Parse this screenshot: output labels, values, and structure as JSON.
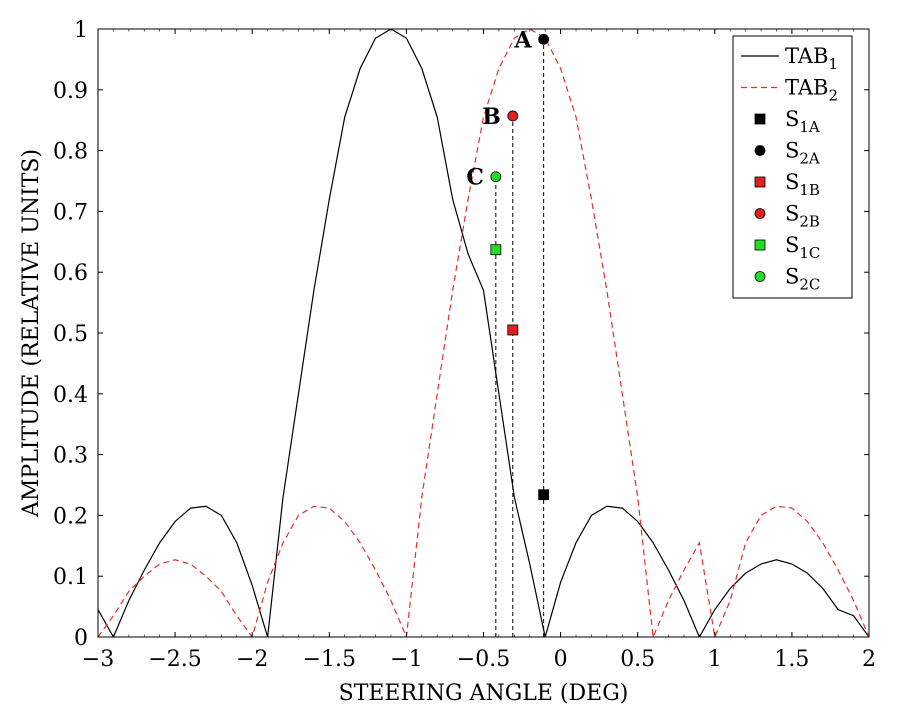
{
  "chart_data": {
    "type": "line",
    "xlabel": "STEERING ANGLE (DEG)",
    "ylabel": "AMPLITUDE (RELATIVE UNITS)",
    "xlim": [
      -3,
      2
    ],
    "ylim": [
      0,
      1
    ],
    "grid": false,
    "legend_position": "top-right",
    "x_ticks": [
      -3,
      -2.5,
      -2,
      -1.5,
      -1,
      -0.5,
      0,
      0.5,
      1,
      1.5,
      2
    ],
    "x_tick_labels": [
      "−3",
      "−2.5",
      "−2",
      "−1.5",
      "−1",
      "−0.5",
      "0",
      "0.5",
      "1",
      "1.5",
      "2"
    ],
    "y_ticks": [
      0,
      0.1,
      0.2,
      0.3,
      0.4,
      0.5,
      0.6,
      0.7,
      0.8,
      0.9,
      1
    ],
    "y_tick_labels": [
      "0",
      "0.1",
      "0.2",
      "0.3",
      "0.4",
      "0.5",
      "0.6",
      "0.7",
      "0.8",
      "0.9",
      "1"
    ],
    "series": [
      {
        "name": "TAB",
        "subscript": "1",
        "style": "solid",
        "color": "#000000",
        "x": [
          -3.0,
          -2.9,
          -2.8,
          -2.7,
          -2.6,
          -2.5,
          -2.4,
          -2.3,
          -2.2,
          -2.1,
          -2.0,
          -1.9,
          -1.8,
          -1.7,
          -1.6,
          -1.5,
          -1.4,
          -1.3,
          -1.2,
          -1.1,
          -1.0,
          -0.9,
          -0.8,
          -0.7,
          -0.6,
          -0.5,
          -0.4,
          -0.3,
          -0.2,
          -0.1,
          0.0,
          0.1,
          0.2,
          0.3,
          0.4,
          0.5,
          0.6,
          0.7,
          0.8,
          0.9,
          1.0,
          1.1,
          1.2,
          1.3,
          1.4,
          1.5,
          1.6,
          1.7,
          1.8,
          1.9,
          2.0
        ],
        "y": [
          0.045,
          0.0,
          0.06,
          0.11,
          0.155,
          0.19,
          0.212,
          0.215,
          0.2,
          0.155,
          0.085,
          0.0,
          0.23,
          0.4,
          0.57,
          0.72,
          0.855,
          0.935,
          0.985,
          1.0,
          0.985,
          0.935,
          0.855,
          0.72,
          0.63,
          0.57,
          0.4,
          0.23,
          0.12,
          0.0,
          0.09,
          0.155,
          0.2,
          0.215,
          0.212,
          0.19,
          0.155,
          0.11,
          0.06,
          0.0,
          0.045,
          0.08,
          0.105,
          0.12,
          0.127,
          0.12,
          0.105,
          0.08,
          0.045,
          0.035,
          0.0
        ]
      },
      {
        "name": "TAB",
        "subscript": "2",
        "style": "dashed",
        "color": "#e03030",
        "x": [
          -3.0,
          -2.9,
          -2.8,
          -2.7,
          -2.6,
          -2.5,
          -2.4,
          -2.3,
          -2.2,
          -2.1,
          -2.0,
          -1.9,
          -1.8,
          -1.7,
          -1.6,
          -1.5,
          -1.4,
          -1.3,
          -1.2,
          -1.1,
          -1.0,
          -0.9,
          -0.8,
          -0.7,
          -0.6,
          -0.5,
          -0.4,
          -0.3,
          -0.2,
          -0.1,
          0.0,
          0.1,
          0.2,
          0.3,
          0.4,
          0.5,
          0.6,
          0.7,
          0.8,
          0.9,
          1.0,
          1.1,
          1.2,
          1.3,
          1.4,
          1.5,
          1.6,
          1.7,
          1.8,
          1.9,
          2.0
        ],
        "y": [
          0.0,
          0.035,
          0.075,
          0.1,
          0.12,
          0.127,
          0.12,
          0.1,
          0.075,
          0.035,
          0.0,
          0.09,
          0.155,
          0.2,
          0.215,
          0.212,
          0.19,
          0.155,
          0.11,
          0.06,
          0.0,
          0.23,
          0.4,
          0.57,
          0.72,
          0.855,
          0.935,
          0.985,
          1.0,
          0.985,
          0.935,
          0.855,
          0.72,
          0.57,
          0.4,
          0.23,
          0.0,
          0.06,
          0.11,
          0.155,
          0.0,
          0.06,
          0.155,
          0.2,
          0.215,
          0.212,
          0.19,
          0.155,
          0.11,
          0.06,
          0.0
        ]
      }
    ],
    "markers": [
      {
        "name": "S",
        "subscript": "1A",
        "shape": "square",
        "color": "#000000",
        "x": -0.11,
        "y": 0.234
      },
      {
        "name": "S",
        "subscript": "2A",
        "shape": "circle",
        "color": "#000000",
        "x": -0.11,
        "y": 0.983
      },
      {
        "name": "S",
        "subscript": "1B",
        "shape": "square",
        "color": "#e02020",
        "x": -0.31,
        "y": 0.505
      },
      {
        "name": "S",
        "subscript": "2B",
        "shape": "circle",
        "color": "#e02020",
        "x": -0.31,
        "y": 0.857
      },
      {
        "name": "S",
        "subscript": "1C",
        "shape": "square",
        "color": "#22dd22",
        "x": -0.42,
        "y": 0.637
      },
      {
        "name": "S",
        "subscript": "2C",
        "shape": "circle",
        "color": "#22dd22",
        "x": -0.42,
        "y": 0.757
      }
    ],
    "point_labels": [
      {
        "text": "A",
        "x": -0.11,
        "y": 0.983
      },
      {
        "text": "B",
        "x": -0.31,
        "y": 0.857
      },
      {
        "text": "C",
        "x": -0.42,
        "y": 0.757
      }
    ],
    "guide_lines_x": [
      -0.11,
      -0.31,
      -0.42
    ]
  }
}
